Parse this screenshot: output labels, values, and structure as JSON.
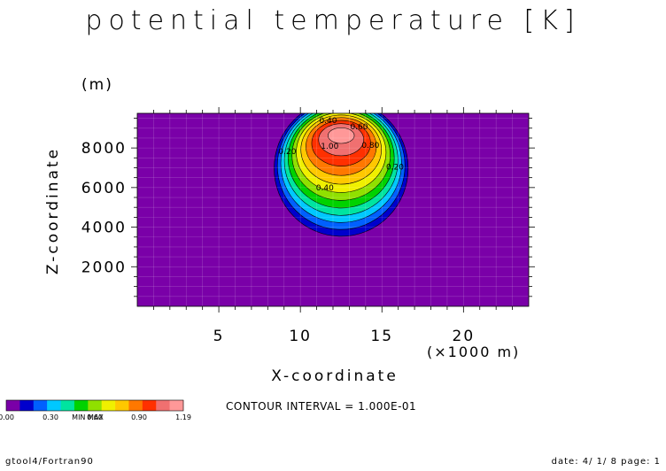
{
  "chart_data": {
    "type": "contour",
    "title": "potential temperature [K]",
    "xlabel": "X-coordinate",
    "x_unit": "(×1000 m)",
    "ylabel": "Z-coordinate",
    "y_unit": "(m)",
    "xlim": [
      0,
      24
    ],
    "ylim": [
      0,
      9750
    ],
    "x_ticks": [
      5,
      10,
      15,
      20
    ],
    "y_ticks": [
      2000,
      4000,
      6000,
      8000
    ],
    "contour_interval": 0.1,
    "anomaly": {
      "center_x": 12.5,
      "center_z": 8800,
      "max_value": 1.19,
      "half_width_x": 4.3,
      "depth_z": 5600
    },
    "contour_labels": [
      {
        "text": "0.40",
        "x": 11.7,
        "z": 9250
      },
      {
        "text": "0.60",
        "x": 13.6,
        "z": 8950
      },
      {
        "text": "1.00",
        "x": 11.8,
        "z": 7950
      },
      {
        "text": "0.40",
        "x": 11.5,
        "z": 5850
      },
      {
        "text": "0.20",
        "x": 9.2,
        "z": 7700
      },
      {
        "text": "0.20",
        "x": 15.8,
        "z": 6900
      },
      {
        "text": "0.80",
        "x": 14.3,
        "z": 8000
      }
    ],
    "colorbar": {
      "min_label": "0.00",
      "max_label": "1.19",
      "tick_labels": [
        "0.00",
        "0.30",
        "0.60",
        "0.90",
        "1.19"
      ],
      "overlap_text": "MIN  MAX",
      "colors": [
        "#7a00a8",
        "#0000cc",
        "#0060ff",
        "#00c8ff",
        "#00e4a0",
        "#00d200",
        "#90e000",
        "#f0f000",
        "#ffc800",
        "#ff7800",
        "#ff3000",
        "#f07070",
        "#ff9898"
      ]
    }
  },
  "labels": {
    "title": "potential temperature [K]",
    "zunit": "(m)",
    "ylabel": "Z-coordinate",
    "xlabel": "X-coordinate",
    "xunit": "(×1000 m)",
    "interval": "CONTOUR INTERVAL = 1.000E-01"
  },
  "footer": {
    "left": "gtool4/Fortran90",
    "right": "date: 4/ 1/ 8 page: 1"
  }
}
